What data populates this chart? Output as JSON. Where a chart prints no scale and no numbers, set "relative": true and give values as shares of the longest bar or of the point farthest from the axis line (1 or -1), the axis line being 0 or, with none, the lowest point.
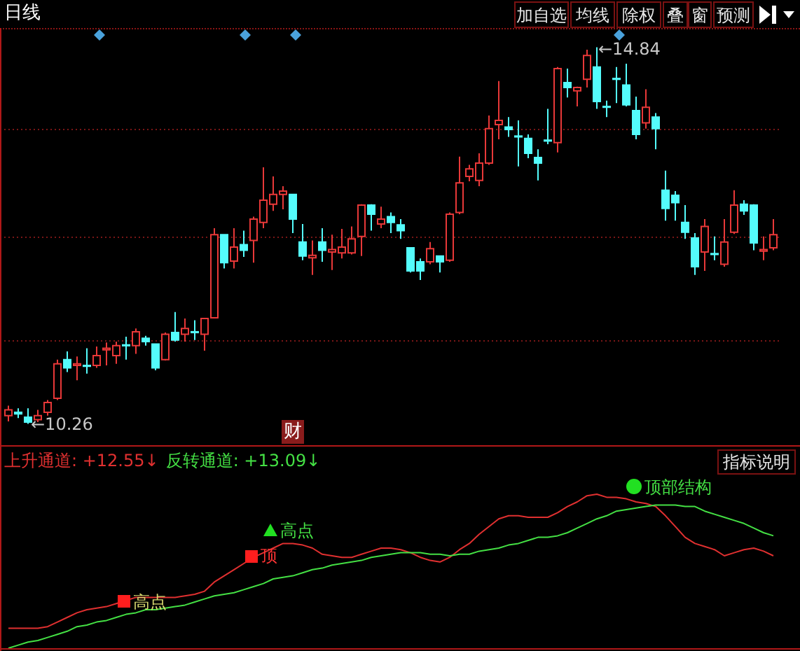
{
  "chart_data": [
    {
      "type": "candlestick",
      "title": "日线",
      "categories": [
        null,
        null,
        null,
        null,
        null,
        null,
        null,
        null,
        null,
        null,
        null,
        null,
        null,
        null,
        null,
        null,
        null,
        null,
        null,
        null,
        null,
        null,
        null,
        null,
        null,
        null,
        null,
        null,
        null,
        null,
        null,
        null,
        null,
        null,
        null,
        null,
        null,
        null,
        null,
        null,
        null,
        null,
        null,
        null,
        null,
        null,
        null,
        null,
        null,
        null,
        null,
        null,
        null,
        null,
        null,
        null,
        null,
        null,
        null,
        null,
        null,
        null,
        null,
        null,
        null,
        null,
        null,
        null,
        null,
        null,
        null,
        null,
        null,
        null,
        null,
        null,
        null,
        null,
        null
      ],
      "ohlc": [
        [
          10.36,
          10.48,
          10.29,
          10.43
        ],
        [
          10.4,
          10.45,
          10.33,
          10.38
        ],
        [
          10.34,
          10.45,
          10.26,
          10.28
        ],
        [
          10.31,
          10.43,
          10.28,
          10.36
        ],
        [
          10.4,
          10.55,
          10.36,
          10.52
        ],
        [
          10.57,
          11.04,
          10.55,
          10.99
        ],
        [
          11.04,
          11.14,
          10.89,
          10.94
        ],
        [
          10.97,
          11.08,
          10.79,
          10.99
        ],
        [
          10.97,
          11.18,
          10.87,
          10.96
        ],
        [
          10.97,
          11.2,
          10.94,
          11.09
        ],
        [
          11.16,
          11.25,
          10.97,
          11.18
        ],
        [
          11.09,
          11.26,
          10.99,
          11.21
        ],
        [
          11.22,
          11.32,
          11.04,
          11.21
        ],
        [
          11.21,
          11.42,
          11.11,
          11.38
        ],
        [
          11.3,
          11.33,
          11.21,
          11.26
        ],
        [
          11.23,
          11.23,
          10.91,
          10.94
        ],
        [
          11.04,
          11.37,
          11.03,
          11.35
        ],
        [
          11.37,
          11.62,
          11.26,
          11.28
        ],
        [
          11.35,
          11.54,
          11.26,
          11.42
        ],
        [
          11.38,
          11.52,
          11.28,
          11.37
        ],
        [
          11.35,
          11.55,
          11.15,
          11.54
        ],
        [
          11.55,
          12.64,
          11.54,
          12.56
        ],
        [
          12.56,
          12.56,
          12.15,
          12.22
        ],
        [
          12.24,
          12.64,
          12.15,
          12.41
        ],
        [
          12.44,
          12.61,
          12.29,
          12.37
        ],
        [
          12.49,
          12.78,
          12.22,
          12.75
        ],
        [
          12.71,
          13.38,
          12.64,
          12.98
        ],
        [
          12.93,
          13.27,
          12.85,
          13.05
        ],
        [
          13.05,
          13.15,
          12.87,
          13.09
        ],
        [
          13.05,
          13.05,
          12.58,
          12.75
        ],
        [
          12.47,
          12.69,
          12.25,
          12.3
        ],
        [
          12.28,
          12.49,
          12.07,
          12.31
        ],
        [
          12.47,
          12.64,
          12.23,
          12.37
        ],
        [
          12.35,
          12.56,
          12.13,
          12.38
        ],
        [
          12.34,
          12.63,
          12.27,
          12.41
        ],
        [
          12.34,
          12.66,
          12.32,
          12.51
        ],
        [
          12.54,
          12.93,
          12.3,
          12.92
        ],
        [
          12.92,
          12.93,
          12.61,
          12.81
        ],
        [
          12.69,
          12.9,
          12.64,
          12.75
        ],
        [
          12.78,
          12.83,
          12.58,
          12.71
        ],
        [
          12.68,
          12.75,
          12.51,
          12.61
        ],
        [
          12.4,
          12.4,
          12.1,
          12.12
        ],
        [
          12.23,
          12.27,
          12.01,
          12.12
        ],
        [
          12.23,
          12.47,
          12.2,
          12.39
        ],
        [
          12.3,
          12.3,
          12.1,
          12.23
        ],
        [
          12.25,
          12.83,
          12.23,
          12.81
        ],
        [
          12.83,
          13.51,
          12.81,
          13.19
        ],
        [
          13.27,
          13.41,
          13.21,
          13.36
        ],
        [
          13.22,
          13.55,
          13.15,
          13.43
        ],
        [
          13.43,
          14.01,
          13.41,
          13.85
        ],
        [
          13.9,
          14.43,
          13.72,
          13.95
        ],
        [
          13.87,
          13.99,
          13.75,
          13.84
        ],
        [
          13.76,
          13.95,
          13.39,
          13.75
        ],
        [
          13.73,
          13.78,
          13.49,
          13.55
        ],
        [
          13.5,
          13.6,
          13.22,
          13.43
        ],
        [
          13.71,
          14.09,
          13.66,
          13.7
        ],
        [
          13.68,
          14.6,
          13.56,
          14.58
        ],
        [
          14.41,
          14.58,
          14.23,
          14.35
        ],
        [
          14.31,
          14.36,
          14.12,
          14.35
        ],
        [
          14.45,
          14.81,
          14.35,
          14.74
        ],
        [
          14.6,
          14.84,
          14.09,
          14.18
        ],
        [
          14.12,
          14.19,
          13.99,
          14.11
        ],
        [
          14.46,
          14.6,
          14.16,
          14.45
        ],
        [
          14.38,
          14.64,
          14.12,
          14.14
        ],
        [
          14.07,
          14.24,
          13.72,
          13.78
        ],
        [
          13.92,
          14.33,
          13.85,
          14.11
        ],
        [
          13.99,
          14.04,
          13.6,
          13.85
        ],
        [
          13.1,
          13.34,
          12.73,
          12.88
        ],
        [
          13.04,
          13.09,
          12.73,
          12.95
        ],
        [
          12.71,
          12.92,
          12.51,
          12.59
        ],
        [
          12.52,
          12.58,
          12.07,
          12.17
        ],
        [
          12.35,
          12.75,
          12.12,
          12.66
        ],
        [
          12.33,
          12.54,
          12.25,
          12.32
        ],
        [
          12.2,
          12.75,
          12.17,
          12.47
        ],
        [
          12.59,
          13.1,
          12.57,
          12.92
        ],
        [
          12.93,
          12.98,
          12.8,
          12.85
        ],
        [
          12.92,
          12.93,
          12.37,
          12.46
        ],
        [
          12.36,
          12.54,
          12.25,
          12.38
        ],
        [
          12.4,
          12.75,
          12.37,
          12.56
        ]
      ],
      "colors": [
        "#e83838",
        "#54fcfc",
        "#54fcfc",
        "#e83838",
        "#e83838",
        "#e83838",
        "#54fcfc",
        "#e83838",
        "#54fcfc",
        "#e83838",
        "#e83838",
        "#e83838",
        "#54fcfc",
        "#e83838",
        "#54fcfc",
        "#54fcfc",
        "#e83838",
        "#54fcfc",
        "#e83838",
        "#54fcfc",
        "#e83838",
        "#e83838",
        "#54fcfc",
        "#e83838",
        "#54fcfc",
        "#e83838",
        "#e83838",
        "#e83838",
        "#e83838",
        "#54fcfc",
        "#54fcfc",
        "#e83838",
        "#54fcfc",
        "#e83838",
        "#e83838",
        "#e83838",
        "#e83838",
        "#54fcfc",
        "#e83838",
        "#54fcfc",
        "#54fcfc",
        "#54fcfc",
        "#54fcfc",
        "#e83838",
        "#54fcfc",
        "#e83838",
        "#e83838",
        "#e83838",
        "#e83838",
        "#e83838",
        "#e83838",
        "#54fcfc",
        "#54fcfc",
        "#54fcfc",
        "#54fcfc",
        "#54fcfc",
        "#e83838",
        "#54fcfc",
        "#e83838",
        "#e83838",
        "#54fcfc",
        "#54fcfc",
        "#54fcfc",
        "#54fcfc",
        "#54fcfc",
        "#e83838",
        "#54fcfc",
        "#54fcfc",
        "#54fcfc",
        "#54fcfc",
        "#54fcfc",
        "#e83838",
        "#54fcfc",
        "#e83838",
        "#e83838",
        "#54fcfc",
        "#54fcfc",
        "#e83838",
        "#e83838"
      ],
      "ylim": [
        10.0,
        15.04
      ],
      "yticks": [
        {
          "value": 11.28,
          "label": null
        },
        {
          "value": 12.54,
          "label": null
        },
        {
          "value": 13.84,
          "label": null
        }
      ],
      "grid": "y",
      "annotations": [
        "←14.84",
        "←10.26",
        "财",
        "加自选",
        "均线",
        "除权",
        "叠",
        "窗",
        "预测"
      ]
    },
    {
      "type": "line",
      "relative": true,
      "legend": "top left",
      "categories": [
        null,
        null,
        null,
        null,
        null,
        null,
        null,
        null,
        null,
        null,
        null,
        null,
        null,
        null,
        null,
        null,
        null,
        null,
        null,
        null,
        null,
        null,
        null,
        null,
        null,
        null,
        null,
        null,
        null,
        null,
        null,
        null,
        null,
        null,
        null,
        null,
        null,
        null,
        null,
        null,
        null,
        null,
        null,
        null,
        null,
        null,
        null,
        null,
        null,
        null,
        null,
        null,
        null,
        null,
        null,
        null,
        null,
        null,
        null,
        null,
        null,
        null,
        null,
        null,
        null,
        null,
        null,
        null,
        null,
        null,
        null,
        null,
        null,
        null,
        null,
        null,
        null,
        null,
        null
      ],
      "series": [
        {
          "name": "上升通道: +12.55↓",
          "color": "#e03030",
          "values": [
            0.13,
            0.13,
            0.13,
            0.13,
            0.14,
            0.17,
            0.2,
            0.23,
            0.25,
            0.26,
            0.27,
            0.29,
            0.31,
            0.33,
            0.33,
            0.33,
            0.33,
            0.33,
            0.34,
            0.35,
            0.37,
            0.43,
            0.47,
            0.51,
            0.55,
            0.59,
            0.62,
            0.65,
            0.68,
            0.68,
            0.67,
            0.65,
            0.61,
            0.6,
            0.59,
            0.59,
            0.61,
            0.63,
            0.65,
            0.65,
            0.64,
            0.62,
            0.59,
            0.57,
            0.56,
            0.59,
            0.64,
            0.68,
            0.74,
            0.79,
            0.84,
            0.86,
            0.86,
            0.85,
            0.85,
            0.85,
            0.88,
            0.92,
            0.95,
            0.99,
            1,
            0.98,
            0.98,
            0.97,
            0.95,
            0.94,
            0.92,
            0.86,
            0.79,
            0.72,
            0.68,
            0.66,
            0.64,
            0.6,
            0.62,
            0.64,
            0.65,
            0.63,
            0.6
          ]
        },
        {
          "name": "反转通道: +13.09↓",
          "color": "#44e044",
          "values": [
            0,
            0.02,
            0.04,
            0.05,
            0.07,
            0.09,
            0.11,
            0.14,
            0.15,
            0.17,
            0.18,
            0.2,
            0.22,
            0.23,
            0.25,
            0.25,
            0.26,
            0.27,
            0.28,
            0.3,
            0.32,
            0.34,
            0.35,
            0.36,
            0.38,
            0.4,
            0.42,
            0.45,
            0.46,
            0.47,
            0.49,
            0.51,
            0.52,
            0.54,
            0.55,
            0.56,
            0.57,
            0.59,
            0.6,
            0.61,
            0.62,
            0.62,
            0.62,
            0.61,
            0.61,
            0.6,
            0.61,
            0.61,
            0.63,
            0.64,
            0.65,
            0.67,
            0.68,
            0.7,
            0.72,
            0.72,
            0.73,
            0.75,
            0.78,
            0.81,
            0.84,
            0.86,
            0.89,
            0.9,
            0.91,
            0.92,
            0.93,
            0.93,
            0.93,
            0.92,
            0.92,
            0.89,
            0.87,
            0.85,
            0.83,
            0.81,
            0.78,
            0.75,
            0.73
          ]
        }
      ],
      "annotations": [
        "高点",
        "顶",
        "高点",
        "顶部结构",
        "指标说明"
      ]
    }
  ]
}
